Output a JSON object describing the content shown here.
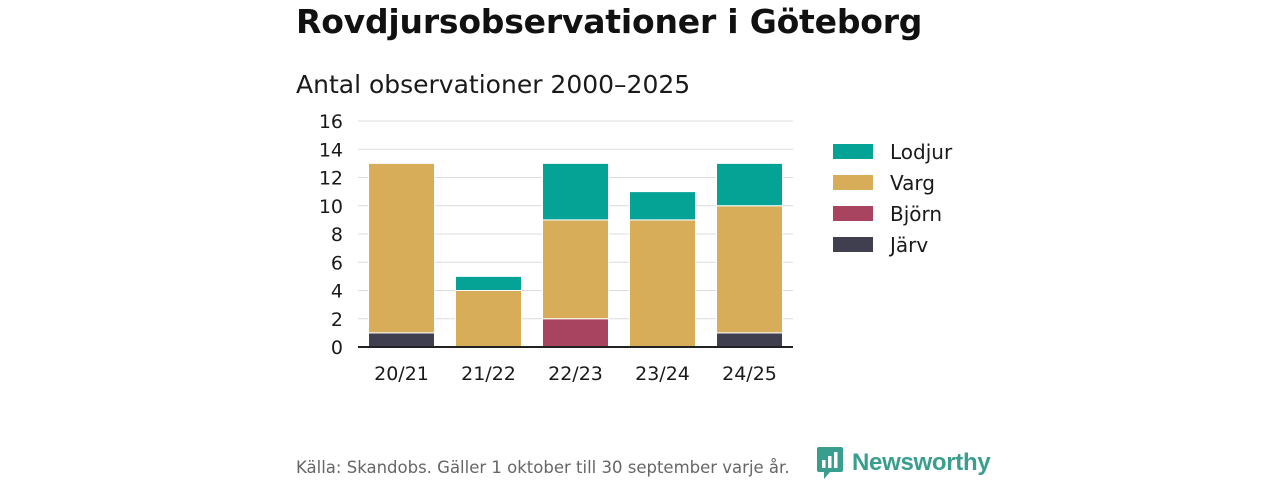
{
  "header": {
    "title": "Rovdjursobservationer i Göteborg",
    "subtitle": "Antal observationer 2000–2025"
  },
  "chart_data": {
    "type": "bar",
    "stacked": true,
    "categories": [
      "20/21",
      "21/22",
      "22/23",
      "23/24",
      "24/25"
    ],
    "series": [
      {
        "name": "Järv",
        "color": "#3f3f4f",
        "values": [
          1,
          0,
          0,
          0,
          1
        ]
      },
      {
        "name": "Björn",
        "color": "#a84460",
        "values": [
          0,
          0,
          2,
          0,
          0
        ]
      },
      {
        "name": "Varg",
        "color": "#d8ad5a",
        "values": [
          12,
          4,
          7,
          9,
          9
        ]
      },
      {
        "name": "Lodjur",
        "color": "#05a396",
        "values": [
          0,
          1,
          4,
          2,
          3
        ]
      }
    ],
    "legend_order": [
      "Lodjur",
      "Varg",
      "Björn",
      "Järv"
    ],
    "legend_position": "right",
    "ylim": [
      0,
      16
    ],
    "yticks": [
      0,
      2,
      4,
      6,
      8,
      10,
      12,
      14,
      16
    ],
    "grid": true,
    "xlabel": "",
    "ylabel": ""
  },
  "footer": {
    "source": "Källa: Skandobs. Gäller 1 oktober till 30 september varje år.",
    "brand": "Newsworthy",
    "brand_icon": "newsworthy-logo-icon",
    "brand_color": "#3a9e8e"
  }
}
